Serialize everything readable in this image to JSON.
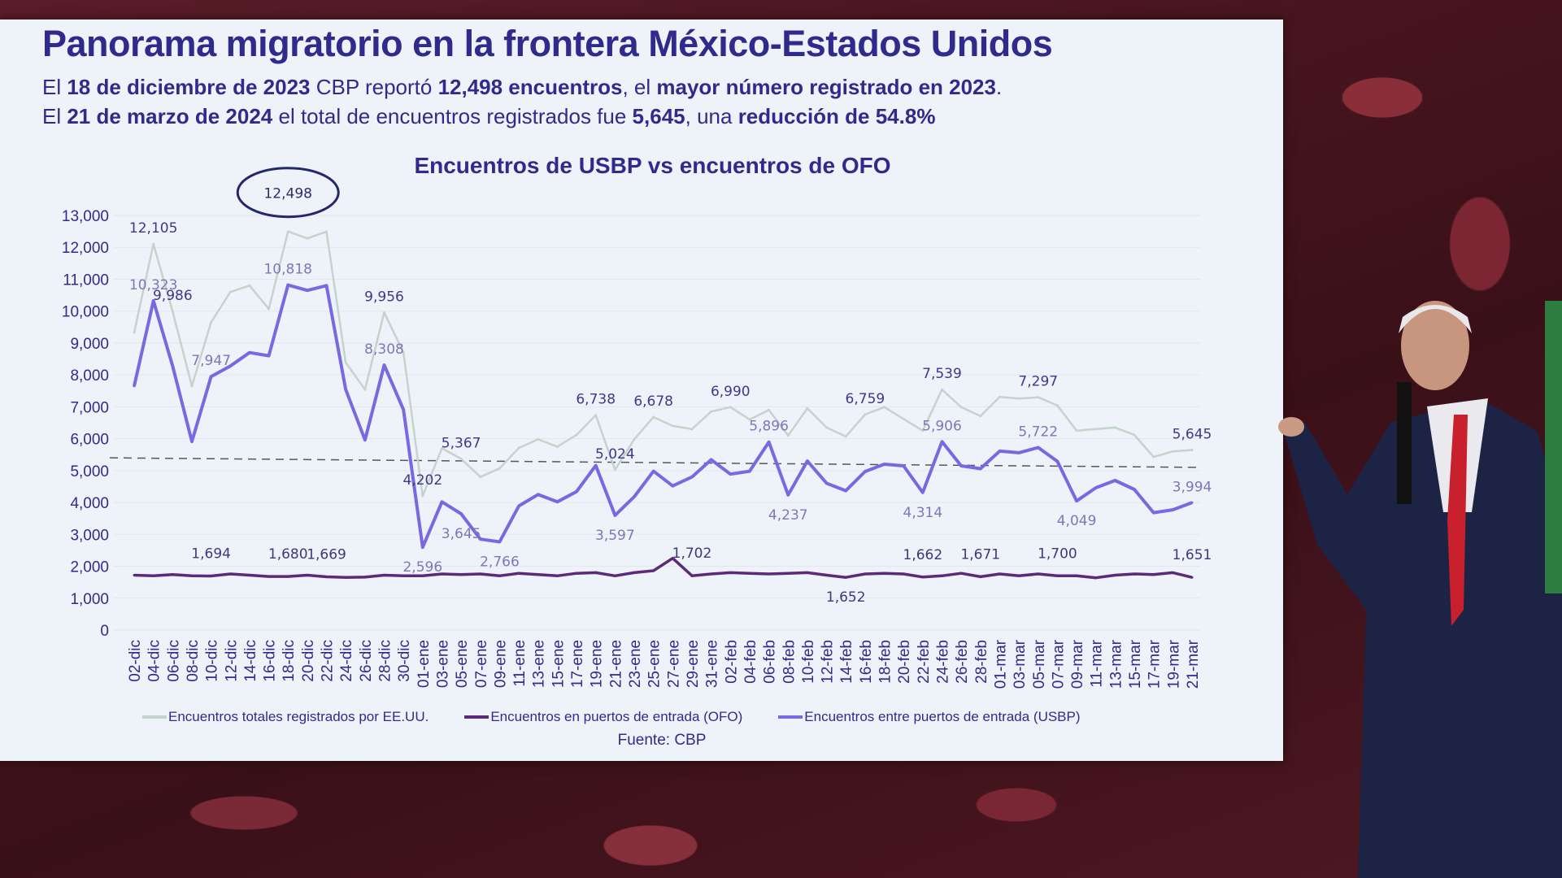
{
  "slide": {
    "title": "Panorama migratorio en la frontera México-Estados Unidos",
    "subtitle_lines": [
      [
        {
          "text": "El ",
          "bold": false
        },
        {
          "text": "18 de diciembre de 2023",
          "bold": true
        },
        {
          "text": " CBP reportó ",
          "bold": false
        },
        {
          "text": "12,498 encuentros",
          "bold": true
        },
        {
          "text": ", el ",
          "bold": false
        },
        {
          "text": "mayor número registrado en 2023",
          "bold": true
        },
        {
          "text": ".",
          "bold": false
        }
      ],
      [
        {
          "text": "El ",
          "bold": false
        },
        {
          "text": "21 de marzo de 2024",
          "bold": true
        },
        {
          "text": " el total de encuentros registrados fue ",
          "bold": false
        },
        {
          "text": "5,645",
          "bold": true
        },
        {
          "text": ", una ",
          "bold": false
        },
        {
          "text": "reducción de 54.8%",
          "bold": true
        }
      ]
    ],
    "source": "Fuente: CBP"
  },
  "colors": {
    "title": "#2f2b8c",
    "total": "#c4d4cc",
    "usbp": "#7a68e2",
    "ofo": "#5b2a78",
    "reference": "#555566",
    "highlight_ellipse": "#23286e"
  },
  "chart_data": {
    "type": "line",
    "title": "Encuentros de USBP vs encuentros de OFO",
    "xlabel": "",
    "ylabel": "",
    "ylim": [
      0,
      13000
    ],
    "yticks": [
      0,
      1000,
      2000,
      3000,
      4000,
      5000,
      6000,
      7000,
      8000,
      9000,
      10000,
      11000,
      12000,
      13000
    ],
    "grid": true,
    "legend_placement": "bottom",
    "categories": [
      "02-dic",
      "04-dic",
      "06-dic",
      "08-dic",
      "10-dic",
      "12-dic",
      "14-dic",
      "16-dic",
      "18-dic",
      "20-dic",
      "22-dic",
      "24-dic",
      "26-dic",
      "28-dic",
      "30-dic",
      "01-ene",
      "03-ene",
      "05-ene",
      "07-ene",
      "09-ene",
      "11-ene",
      "13-ene",
      "15-ene",
      "17-ene",
      "19-ene",
      "21-ene",
      "23-ene",
      "25-ene",
      "27-ene",
      "29-ene",
      "31-ene",
      "02-feb",
      "04-feb",
      "06-feb",
      "08-feb",
      "10-feb",
      "12-feb",
      "14-feb",
      "16-feb",
      "18-feb",
      "20-feb",
      "22-feb",
      "24-feb",
      "26-feb",
      "28-feb",
      "01-mar",
      "03-mar",
      "05-mar",
      "07-mar",
      "09-mar",
      "11-mar",
      "13-mar",
      "15-mar",
      "17-mar",
      "19-mar",
      "21-mar"
    ],
    "series": [
      {
        "key": "total",
        "name": "Encuentros totales registrados por EE.UU.",
        "values": [
          9330,
          12105,
          9986,
          7650,
          9650,
          10600,
          10800,
          10070,
          12498,
          12280,
          12490,
          8390,
          7540,
          9956,
          8700,
          4202,
          5700,
          5367,
          4800,
          5070,
          5710,
          5980,
          5750,
          6120,
          6738,
          5024,
          5980,
          6678,
          6400,
          6300,
          6850,
          6990,
          6600,
          6900,
          6100,
          6950,
          6350,
          6070,
          6759,
          6990,
          6620,
          6250,
          7539,
          6990,
          6710,
          7310,
          7260,
          7297,
          7040,
          6250,
          6300,
          6350,
          6120,
          5430,
          5600,
          5645
        ]
      },
      {
        "key": "ofo",
        "name": "Encuentros en puertos de entrada (OFO)",
        "values": [
          1720,
          1700,
          1740,
          1700,
          1694,
          1760,
          1720,
          1680,
          1680,
          1720,
          1669,
          1650,
          1660,
          1720,
          1700,
          1700,
          1760,
          1740,
          1760,
          1700,
          1780,
          1740,
          1700,
          1780,
          1800,
          1700,
          1800,
          1860,
          2250,
          1702,
          1760,
          1800,
          1780,
          1760,
          1780,
          1800,
          1720,
          1652,
          1760,
          1780,
          1760,
          1662,
          1700,
          1780,
          1671,
          1760,
          1700,
          1760,
          1700,
          1700,
          1640,
          1720,
          1760,
          1740,
          1800,
          1651
        ]
      },
      {
        "key": "usbp",
        "name": "Encuentros entre puertos de entrada (USBP)",
        "values": [
          7650,
          10323,
          8280,
          5910,
          7947,
          8280,
          8700,
          8600,
          10818,
          10650,
          10800,
          7540,
          5960,
          8308,
          6910,
          2596,
          4020,
          3645,
          2850,
          2766,
          3890,
          4250,
          4020,
          4340,
          5160,
          3597,
          4180,
          4980,
          4520,
          4800,
          5340,
          4890,
          4980,
          5896,
          4237,
          5300,
          4600,
          4370,
          4970,
          5200,
          5150,
          4314,
          5906,
          5150,
          5060,
          5610,
          5560,
          5722,
          5290,
          4049,
          4460,
          4690,
          4410,
          3680,
          3770,
          3994
        ]
      }
    ],
    "reference_line": [
      5400,
      5100
    ],
    "highlight": {
      "date": "18-dic",
      "series": "total",
      "text": "12,498"
    },
    "data_labels": [
      {
        "series": "total",
        "date": "04-dic",
        "text": "12,105"
      },
      {
        "series": "usbp",
        "date": "04-dic",
        "text": "10,323"
      },
      {
        "series": "total",
        "date": "06-dic",
        "text": "9,986"
      },
      {
        "series": "usbp",
        "date": "10-dic",
        "text": "7,947"
      },
      {
        "series": "usbp",
        "date": "18-dic",
        "text": "10,818"
      },
      {
        "series": "total",
        "date": "28-dic",
        "text": "9,956"
      },
      {
        "series": "usbp",
        "date": "28-dic",
        "text": "8,308"
      },
      {
        "series": "total",
        "date": "01-ene",
        "text": "4,202"
      },
      {
        "series": "usbp",
        "date": "01-ene",
        "text": "2,596"
      },
      {
        "series": "total",
        "date": "05-ene",
        "text": "5,367"
      },
      {
        "series": "usbp",
        "date": "05-ene",
        "text": "3,645"
      },
      {
        "series": "usbp",
        "date": "09-ene",
        "text": "2,766"
      },
      {
        "series": "total",
        "date": "19-ene",
        "text": "6,738"
      },
      {
        "series": "total",
        "date": "21-ene",
        "text": "5,024"
      },
      {
        "series": "usbp",
        "date": "21-ene",
        "text": "3,597"
      },
      {
        "series": "total",
        "date": "25-ene",
        "text": "6,678"
      },
      {
        "series": "total",
        "date": "02-feb",
        "text": "6,990"
      },
      {
        "series": "usbp",
        "date": "06-feb",
        "text": "5,896"
      },
      {
        "series": "usbp",
        "date": "08-feb",
        "text": "4,237"
      },
      {
        "series": "total",
        "date": "16-feb",
        "text": "6,759"
      },
      {
        "series": "usbp",
        "date": "22-feb",
        "text": "4,314"
      },
      {
        "series": "total",
        "date": "24-feb",
        "text": "7,539"
      },
      {
        "series": "usbp",
        "date": "24-feb",
        "text": "5,906"
      },
      {
        "series": "total",
        "date": "05-mar",
        "text": "7,297"
      },
      {
        "series": "usbp",
        "date": "05-mar",
        "text": "5,722"
      },
      {
        "series": "usbp",
        "date": "09-mar",
        "text": "4,049"
      },
      {
        "series": "total",
        "date": "21-mar",
        "text": "5,645"
      },
      {
        "series": "usbp",
        "date": "21-mar",
        "text": "3,994"
      },
      {
        "series": "ofo",
        "date": "10-dic",
        "text": "1,694"
      },
      {
        "series": "ofo",
        "date": "18-dic",
        "text": "1,680"
      },
      {
        "series": "ofo",
        "date": "22-dic",
        "text": "1,669"
      },
      {
        "series": "ofo",
        "date": "29-ene",
        "text": "1,702"
      },
      {
        "series": "ofo",
        "date": "14-feb",
        "text": "1,652"
      },
      {
        "series": "ofo",
        "date": "22-feb",
        "text": "1,662"
      },
      {
        "series": "ofo",
        "date": "28-feb",
        "text": "1,671"
      },
      {
        "series": "ofo",
        "date": "07-mar",
        "text": "1,700"
      },
      {
        "series": "ofo",
        "date": "21-mar",
        "text": "1,651"
      }
    ]
  }
}
